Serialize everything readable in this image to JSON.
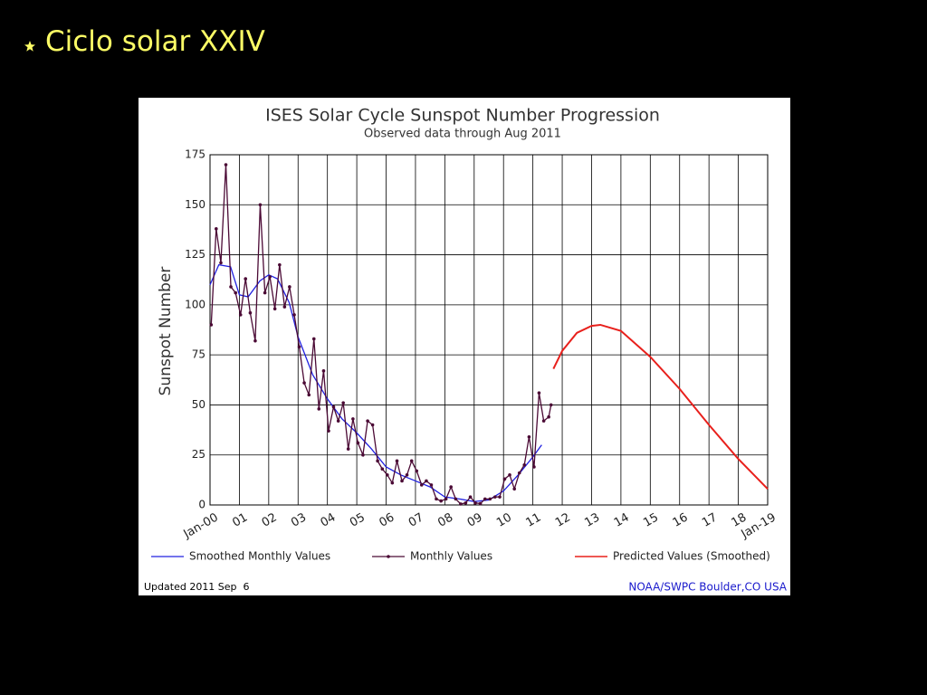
{
  "slide": {
    "title": "Ciclo solar XXIV"
  },
  "chart_data": {
    "type": "line",
    "title": "ISES Solar Cycle Sunspot Number Progression",
    "subtitle": "Observed data through Aug 2011",
    "y_label": "Sunspot Number",
    "footer": "Updated 2011 Sep  6",
    "credit": "NOAA/SWPC Boulder,CO USA",
    "xlim": [
      2000,
      2019
    ],
    "xticks": [
      {
        "value": 2000,
        "label": "Jan-00"
      },
      {
        "value": 2001,
        "label": "01"
      },
      {
        "value": 2002,
        "label": "02"
      },
      {
        "value": 2003,
        "label": "03"
      },
      {
        "value": 2004,
        "label": "04"
      },
      {
        "value": 2005,
        "label": "05"
      },
      {
        "value": 2006,
        "label": "06"
      },
      {
        "value": 2007,
        "label": "07"
      },
      {
        "value": 2008,
        "label": "08"
      },
      {
        "value": 2009,
        "label": "09"
      },
      {
        "value": 2010,
        "label": "10"
      },
      {
        "value": 2011,
        "label": "11"
      },
      {
        "value": 2012,
        "label": "12"
      },
      {
        "value": 2013,
        "label": "13"
      },
      {
        "value": 2014,
        "label": "14"
      },
      {
        "value": 2015,
        "label": "15"
      },
      {
        "value": 2016,
        "label": "16"
      },
      {
        "value": 2017,
        "label": "17"
      },
      {
        "value": 2018,
        "label": "18"
      },
      {
        "value": 2019,
        "label": "Jan-19"
      }
    ],
    "ylim": [
      0,
      175
    ],
    "yticks": [
      0,
      25,
      50,
      75,
      100,
      125,
      150,
      175
    ],
    "grid": true,
    "series": [
      {
        "name": "Smoothed Monthly Values",
        "color": "#2020e0",
        "markers": false,
        "x": [
          2000.0,
          2000.3,
          2000.7,
          2001.0,
          2001.3,
          2001.7,
          2002.0,
          2002.3,
          2002.7,
          2003.0,
          2003.5,
          2004.0,
          2004.5,
          2005.0,
          2005.5,
          2006.0,
          2006.5,
          2007.0,
          2007.5,
          2008.0,
          2008.5,
          2009.0,
          2009.5,
          2010.0,
          2010.5,
          2011.0,
          2011.3
        ],
        "values": [
          110,
          120,
          119,
          105,
          104,
          112,
          115,
          113,
          101,
          84,
          65,
          53,
          43,
          36,
          28,
          19,
          15,
          12,
          9,
          4,
          3,
          1.7,
          2.5,
          7,
          15,
          24,
          30
        ]
      },
      {
        "name": "Monthly Values",
        "color": "#4b0a35",
        "markers": true,
        "x": [
          2000.04,
          2000.21,
          2000.37,
          2000.54,
          2000.71,
          2000.87,
          2001.04,
          2001.21,
          2001.37,
          2001.54,
          2001.71,
          2001.87,
          2002.04,
          2002.21,
          2002.37,
          2002.54,
          2002.71,
          2002.87,
          2003.04,
          2003.21,
          2003.37,
          2003.54,
          2003.71,
          2003.87,
          2004.04,
          2004.21,
          2004.37,
          2004.54,
          2004.71,
          2004.87,
          2005.04,
          2005.21,
          2005.37,
          2005.54,
          2005.71,
          2005.87,
          2006.04,
          2006.21,
          2006.37,
          2006.54,
          2006.71,
          2006.87,
          2007.04,
          2007.21,
          2007.37,
          2007.54,
          2007.71,
          2007.87,
          2008.04,
          2008.21,
          2008.37,
          2008.54,
          2008.71,
          2008.87,
          2009.04,
          2009.21,
          2009.37,
          2009.54,
          2009.71,
          2009.87,
          2010.04,
          2010.21,
          2010.37,
          2010.54,
          2010.71,
          2010.87,
          2011.04,
          2011.21,
          2011.37,
          2011.54,
          2011.62
        ],
        "values": [
          90,
          138,
          121,
          170,
          109,
          106,
          95,
          113,
          96,
          82,
          150,
          106,
          114,
          98,
          120,
          99,
          109,
          95,
          79,
          61,
          55,
          83,
          48,
          67,
          37,
          49,
          42,
          51,
          28,
          43,
          31,
          25,
          42,
          40,
          22,
          18,
          15,
          11,
          22,
          12,
          15,
          22,
          17,
          10,
          12,
          10,
          3,
          2,
          3,
          9,
          3,
          0.5,
          1,
          4,
          1,
          0.7,
          3,
          3,
          4,
          4,
          13,
          15,
          8,
          16,
          20,
          34,
          19,
          56,
          42,
          44,
          50
        ]
      },
      {
        "name": "Predicted Values (Smoothed)",
        "color": "#e8201c",
        "markers": false,
        "x": [
          2011.7,
          2012.0,
          2012.5,
          2013.0,
          2013.3,
          2014.0,
          2015.0,
          2016.0,
          2017.0,
          2018.0,
          2019.0
        ],
        "values": [
          68,
          77,
          86,
          89.5,
          90,
          87,
          74,
          58,
          40,
          23,
          8
        ]
      }
    ]
  }
}
